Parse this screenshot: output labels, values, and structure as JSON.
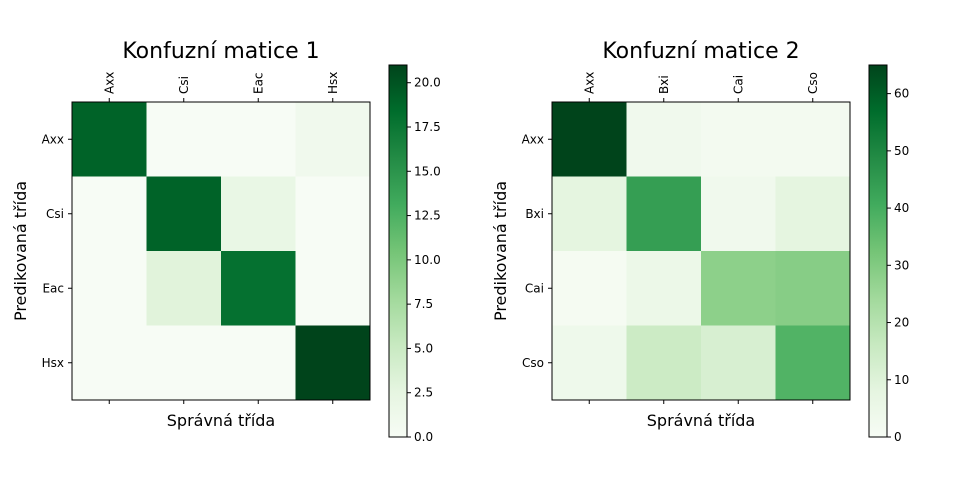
{
  "chart_data": [
    {
      "type": "heatmap",
      "title": "Konfuzní matice 1",
      "xlabel": "Správná třída",
      "ylabel": "Predikovaná třída",
      "x_categories": [
        "Axx",
        "Csi",
        "Eac",
        "Hsx"
      ],
      "y_categories": [
        "Axx",
        "Csi",
        "Eac",
        "Hsx"
      ],
      "values": [
        [
          19,
          0,
          0,
          1
        ],
        [
          0,
          19,
          2,
          0
        ],
        [
          0,
          3,
          18,
          0
        ],
        [
          0,
          0,
          0,
          21
        ]
      ],
      "colorbar": {
        "min": 0,
        "max": 21,
        "ticks": [
          "0.0",
          "2.5",
          "5.0",
          "7.5",
          "10.0",
          "12.5",
          "15.0",
          "17.5",
          "20.0"
        ],
        "tick_values": [
          0,
          2.5,
          5,
          7.5,
          10,
          12.5,
          15,
          17.5,
          20
        ]
      },
      "colormap": "Greens"
    },
    {
      "type": "heatmap",
      "title": "Konfuzní matice 2",
      "xlabel": "Správná třída",
      "ylabel": "Predikovaná třída",
      "x_categories": [
        "Axx",
        "Bxi",
        "Cai",
        "Cso"
      ],
      "y_categories": [
        "Axx",
        "Bxi",
        "Cai",
        "Cso"
      ],
      "values": [
        [
          65,
          3,
          2,
          2
        ],
        [
          8,
          44,
          3,
          8
        ],
        [
          1,
          5,
          28,
          29
        ],
        [
          4,
          15,
          12,
          38
        ]
      ],
      "colorbar": {
        "min": 0,
        "max": 65,
        "ticks": [
          "0",
          "10",
          "20",
          "30",
          "40",
          "50",
          "60"
        ],
        "tick_values": [
          0,
          10,
          20,
          30,
          40,
          50,
          60
        ]
      },
      "colormap": "Greens"
    }
  ]
}
